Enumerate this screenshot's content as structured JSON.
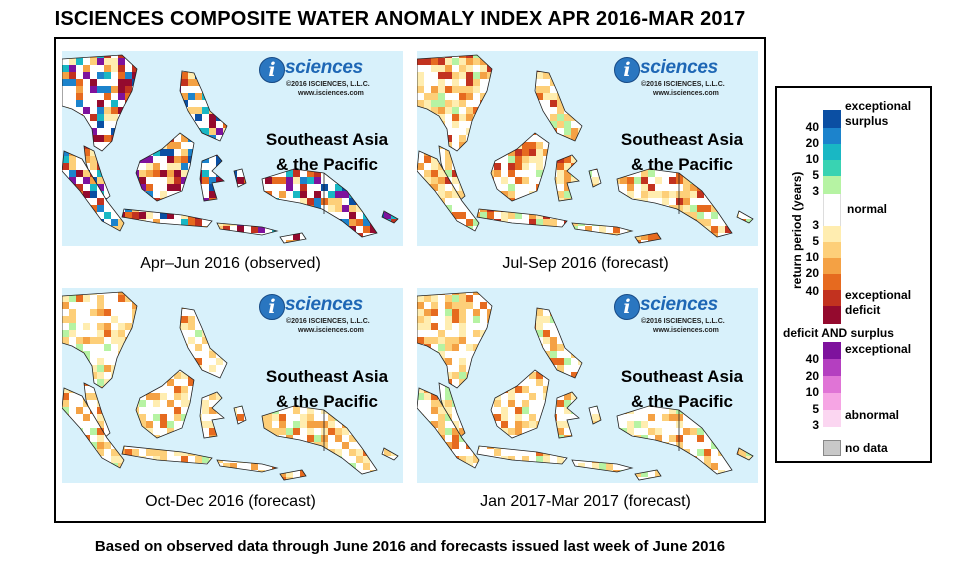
{
  "title": "ISCIENCES COMPOSITE WATER ANOMALY INDEX APR 2016-MAR 2017",
  "footer": "Based on observed data through June 2016 and forecasts issued last week of June 2016",
  "logo": {
    "mark": "i",
    "word": "sciences",
    "copyright": "©2016 ISCIENCES, L.L.C.",
    "url": "www.isciences.com"
  },
  "panels": [
    {
      "region_line1": "Southeast Asia",
      "region_line2": "& the Pacific",
      "caption": "Apr–Jun 2016 (observed)",
      "dominant": "surplus-and-deficit"
    },
    {
      "region_line1": "Southeast Asia",
      "region_line2": "& the Pacific",
      "caption": "Jul-Sep 2016 (forecast)",
      "dominant": "moderate-deficit"
    },
    {
      "region_line1": "Southeast Asia",
      "region_line2": "& the Pacific",
      "caption": "Oct-Dec 2016 (forecast)",
      "dominant": "mild-deficit"
    },
    {
      "region_line1": "Southeast Asia",
      "region_line2": "& the Pacific",
      "caption": "Jan 2017-Mar 2017 (forecast)",
      "dominant": "mild-deficit"
    }
  ],
  "legend": {
    "axis_label": "return period (years)",
    "surplus_label_1": "exceptional",
    "surplus_label_2": "surplus",
    "surplus_ticks": [
      "40",
      "20",
      "10",
      "5",
      "3"
    ],
    "normal_label": "normal",
    "deficit_ticks": [
      "3",
      "5",
      "10",
      "20",
      "40"
    ],
    "deficit_label_1": "exceptional",
    "deficit_label_2": "deficit",
    "both_title": "deficit AND surplus",
    "both_label_top": "exceptional",
    "both_ticks": [
      "40",
      "20",
      "10",
      "5",
      "3"
    ],
    "both_label_bottom": "abnormal",
    "nodata_label": "no data",
    "colors": {
      "surplus": [
        "#0b4fa3",
        "#1c83cc",
        "#19b7c4",
        "#39d3b2",
        "#b6f3a3"
      ],
      "normal": "#ffffff",
      "deficit": [
        "#ffedb0",
        "#fdcf79",
        "#f4a144",
        "#e66a1f",
        "#c2321f",
        "#940a2e"
      ],
      "both": [
        "#7e129d",
        "#b43fc0",
        "#e074d6",
        "#f6a5e4",
        "#fbd6f1"
      ],
      "nodata": "#c8c8c8"
    }
  }
}
